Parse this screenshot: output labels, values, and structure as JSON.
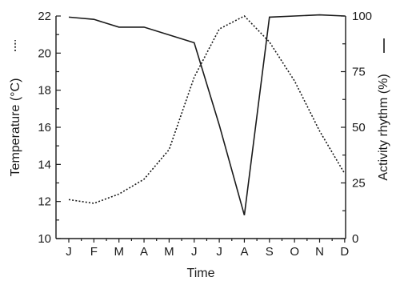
{
  "chart_data": {
    "type": "line",
    "categories": [
      "J",
      "F",
      "M",
      "A",
      "M",
      "J",
      "J",
      "A",
      "S",
      "O",
      "N",
      "D"
    ],
    "xlabel": "Time",
    "ylabel_left": "Temperature (°C)",
    "ylabel_right": "Activity rhythm (%)",
    "ylim_left": [
      10,
      22
    ],
    "yticks_left": [
      "10",
      "12",
      "14",
      "16",
      "18",
      "20",
      "22"
    ],
    "ylim_right": [
      0,
      100
    ],
    "yticks_right": [
      "0",
      "25",
      "50",
      "75",
      "100"
    ],
    "grid": false,
    "legend_marks": {
      "temperature": "dotted",
      "activity": "solid"
    },
    "series": [
      {
        "axis": "left",
        "style": "dotted",
        "values": [
          12.1,
          11.9,
          12.4,
          13.2,
          14.8,
          18.7,
          21.3,
          22.0,
          20.6,
          18.5,
          15.8,
          13.5
        ]
      },
      {
        "axis": "right",
        "style": "solid",
        "values": [
          99.5,
          98.5,
          95.0,
          95.0,
          91.5,
          88.0,
          51.0,
          10.5,
          99.5,
          100.0,
          100.5,
          100.0
        ]
      }
    ]
  }
}
